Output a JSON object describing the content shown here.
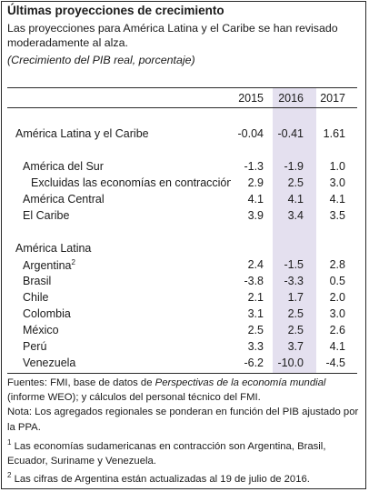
{
  "title": "Últimas proyecciones de crecimiento",
  "subtitle": "Las proyecciones para América Latina y el Caribe se han revisado moderadamente al alza.",
  "unit": "(Crecimiento del PIB real, porcentaje)",
  "years": [
    "2015",
    "2016",
    "2017"
  ],
  "rows": [
    {
      "label": "América Latina y el Caribe",
      "values": [
        "-0.04",
        "-0.41",
        "1.61"
      ]
    },
    {
      "label": "América del Sur",
      "values": [
        "-1.3",
        "-1.9",
        "1.0"
      ]
    },
    {
      "label": "Excluidas las economías en contracción",
      "values": [
        "2.9",
        "2.5",
        "3.0"
      ]
    },
    {
      "label": "América Central",
      "values": [
        "4.1",
        "4.1",
        "4.1"
      ]
    },
    {
      "label": "El Caribe",
      "values": [
        "3.9",
        "3.4",
        "3.5"
      ]
    },
    {
      "label": "América Latina",
      "values": [
        "",
        "",
        ""
      ]
    },
    {
      "label": "Argentina",
      "sup": "2",
      "values": [
        "2.4",
        "-1.5",
        "2.8"
      ]
    },
    {
      "label": "Brasil",
      "values": [
        "-3.8",
        "-3.3",
        "0.5"
      ]
    },
    {
      "label": "Chile",
      "values": [
        "2.1",
        "1.7",
        "2.0"
      ]
    },
    {
      "label": "Colombia",
      "values": [
        "3.1",
        "2.5",
        "3.0"
      ]
    },
    {
      "label": "México",
      "values": [
        "2.5",
        "2.5",
        "2.6"
      ]
    },
    {
      "label": "Perú",
      "values": [
        "3.3",
        "3.7",
        "4.1"
      ]
    },
    {
      "label": "Venezuela",
      "values": [
        "-6.2",
        "-10.0",
        "-4.5"
      ]
    }
  ],
  "notes": {
    "source_prefix": "Fuentes: FMI, base de datos de ",
    "source_italic": "Perspectivas de la economía mundial",
    "source_suffix": " (informe WEO); y cálculos del personal técnico del FMI.",
    "note": "Nota: Los agregados regionales se ponderan en función del PIB ajustado por la PPA.",
    "fn1_mark": "1",
    "fn1": " Las economías sudamericanas en contracción son Argentina, Brasil, Ecuador, Suriname y Venezuela.",
    "fn2_mark": "2",
    "fn2": " Las cifras de Argentina están actualizadas al 19 de julio de 2016."
  }
}
